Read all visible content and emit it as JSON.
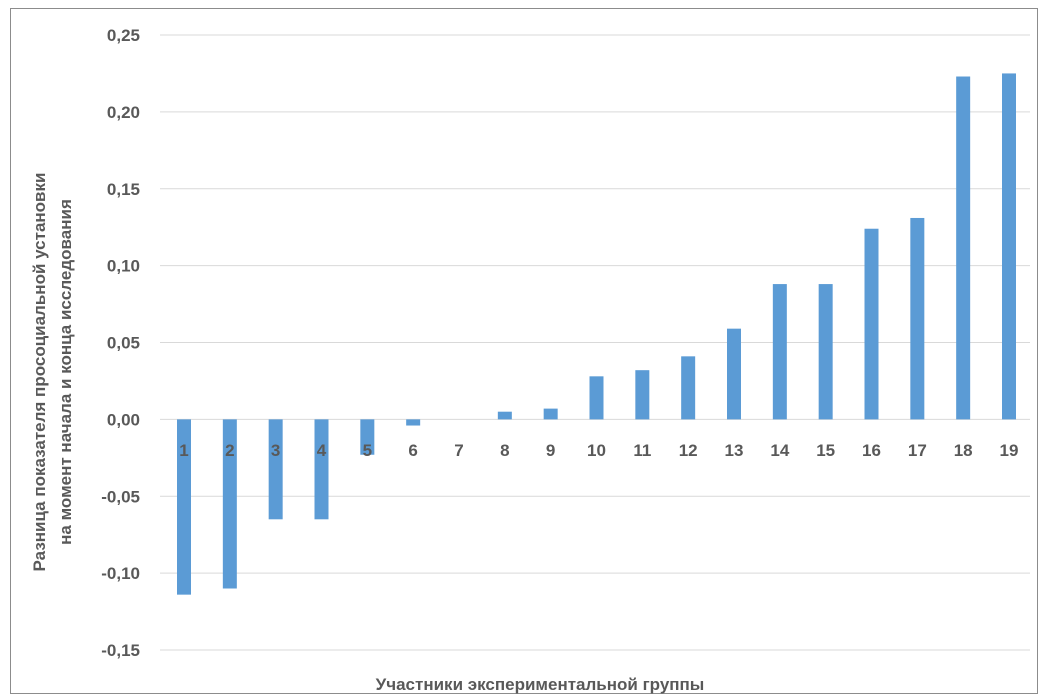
{
  "chart_data": {
    "type": "bar",
    "categories": [
      "1",
      "2",
      "3",
      "4",
      "5",
      "6",
      "7",
      "8",
      "9",
      "10",
      "11",
      "12",
      "13",
      "14",
      "15",
      "16",
      "17",
      "18",
      "19"
    ],
    "values": [
      -0.114,
      -0.11,
      -0.065,
      -0.065,
      -0.023,
      -0.004,
      0.0,
      0.005,
      0.007,
      0.028,
      0.032,
      0.041,
      0.059,
      0.088,
      0.088,
      0.124,
      0.131,
      0.223,
      0.225
    ],
    "ylim": [
      -0.15,
      0.25
    ],
    "yticks": [
      "0,25",
      "0,20",
      "0,15",
      "0,10",
      "0,05",
      "0,00",
      "-0,05",
      "-0,10",
      "-0,15"
    ],
    "ytick_values": [
      0.25,
      0.2,
      0.15,
      0.1,
      0.05,
      0.0,
      -0.05,
      -0.1,
      -0.15
    ],
    "xlabel": "Участники экспериментальной группы",
    "ylabel_line1": "Разница показателя просоциальной установки",
    "ylabel_line2": "на момент начала и конца исследования",
    "grid": true,
    "bar_color": "#5b9bd5",
    "grid_color": "#d9d9d9",
    "legend": "none"
  }
}
